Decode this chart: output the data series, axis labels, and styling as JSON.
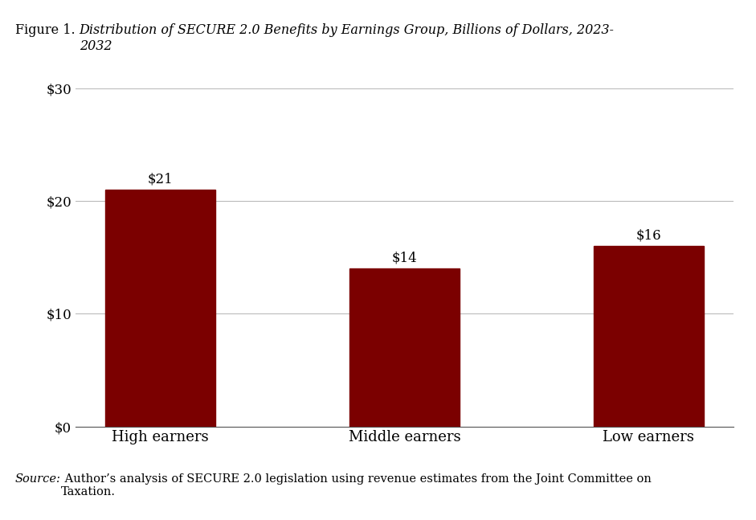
{
  "categories": [
    "High earners",
    "Middle earners",
    "Low earners"
  ],
  "values": [
    21,
    14,
    16
  ],
  "bar_labels": [
    "$21",
    "$14",
    "$16"
  ],
  "bar_color": "#7B0000",
  "ylim": [
    0,
    30
  ],
  "yticks": [
    0,
    10,
    20,
    30
  ],
  "ytick_labels": [
    "$0",
    "$10",
    "$20",
    "$30"
  ],
  "title_prefix": "Figure 1. ",
  "title_italic": "Distribution of SECURE 2.0 Benefits by Earnings Group, Billions of Dollars, 2023-\n2032",
  "source_italic": "Source:",
  "source_regular": " Author’s analysis of SECURE 2.0 legislation using revenue estimates from the Joint Committee on\nTaxation.",
  "background_color": "#ffffff",
  "bar_width": 0.45,
  "title_fontsize": 11.5,
  "tick_fontsize": 12,
  "label_fontsize": 12,
  "source_fontsize": 10.5,
  "xlabel_fontsize": 13
}
